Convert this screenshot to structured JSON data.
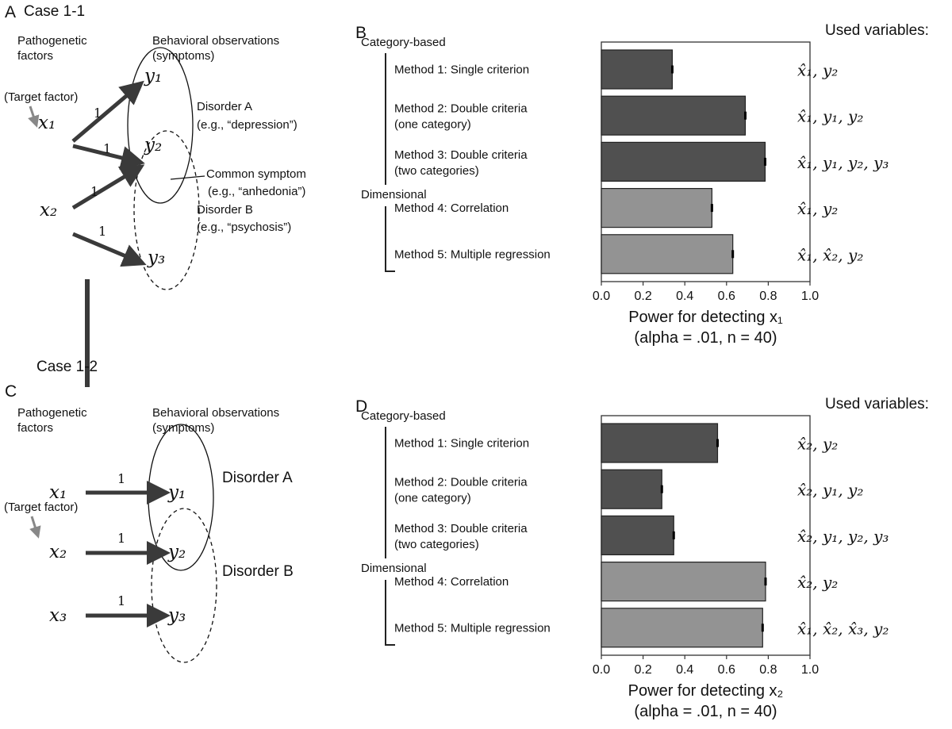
{
  "colors": {
    "category_bar": "#505050",
    "dimensional_bar": "#939393",
    "arrow": "#3a3a3a",
    "target_arrow": "#888888"
  },
  "panel_a": {
    "letter": "A",
    "case": "Case 1-1",
    "factors_label": [
      "Pathogenetic",
      "factors"
    ],
    "obs_label": [
      "Behavioral observations",
      "(symptoms)"
    ],
    "target": "(Target factor)",
    "nodes": {
      "x1": "x₁",
      "x2": "x₂",
      "y1": "y₁",
      "y2": "y₂",
      "y3": "y₃"
    },
    "weight": "1",
    "disorder_a": [
      "Disorder A",
      "(e.g., “depression”)"
    ],
    "common": [
      "Common symptom",
      "(e.g., “anhedonia”)"
    ],
    "disorder_b": [
      "Disorder B",
      "(e.g., “psychosis”)"
    ]
  },
  "panel_c": {
    "letter": "C",
    "case": "Case 1-2",
    "factors_label": [
      "Pathogenetic",
      "factors"
    ],
    "obs_label": [
      "Behavioral observations",
      "(symptoms)"
    ],
    "target": "(Target factor)",
    "nodes": {
      "x1": "x₁",
      "x2": "x₂",
      "x3": "x₃",
      "y1": "y₁",
      "y2": "y₂",
      "y3": "y₃"
    },
    "weight": "1",
    "disorder_a": "Disorder A",
    "disorder_b": "Disorder B"
  },
  "groups": {
    "category": "Category-based",
    "dimensional": "Dimensional"
  },
  "methods": [
    "Method 1: Single criterion",
    [
      "Method 2: Double criteria",
      "(one category)"
    ],
    [
      "Method 3: Double criteria",
      "(two categories)"
    ],
    "Method 4: Correlation",
    "Method 5: Multiple regression"
  ],
  "used_variables_label": "Used variables:",
  "chart_data": [
    {
      "panel": "B",
      "type": "bar",
      "orientation": "horizontal",
      "categories": [
        "Method 1: Single criterion",
        "Method 2: Double criteria (one category)",
        "Method 3: Double criteria (two categories)",
        "Method 4: Correlation",
        "Method 5: Multiple regression"
      ],
      "values": [
        0.34,
        0.69,
        0.785,
        0.53,
        0.63
      ],
      "groups": [
        "Category-based",
        "Category-based",
        "Category-based",
        "Dimensional",
        "Dimensional"
      ],
      "used_variables": [
        "x̂₁, y₂",
        "x̂₁, y₁, y₂",
        "x̂₁, y₁, y₂, y₃",
        "x̂₁, y₂",
        "x̂₁, x̂₂, y₂"
      ],
      "xlabel": "Power for detecting x₁",
      "xlabel2": "(alpha = .01, n = 40)",
      "xlim": [
        0,
        1
      ],
      "xticks": [
        "0.0",
        "0.2",
        "0.4",
        "0.6",
        "0.8",
        "1.0"
      ],
      "error_bars": true,
      "grid": false
    },
    {
      "panel": "D",
      "type": "bar",
      "orientation": "horizontal",
      "categories": [
        "Method 1: Single criterion",
        "Method 2: Double criteria (one category)",
        "Method 3: Double criteria (two categories)",
        "Method 4: Correlation",
        "Method 5: Multiple regression"
      ],
      "values": [
        0.557,
        0.29,
        0.347,
        0.787,
        0.773
      ],
      "groups": [
        "Category-based",
        "Category-based",
        "Category-based",
        "Dimensional",
        "Dimensional"
      ],
      "used_variables": [
        "x̂₂, y₂",
        "x̂₂, y₁, y₂",
        "x̂₂, y₁, y₂, y₃",
        "x̂₂, y₂",
        "x̂₁, x̂₂, x̂₃, y₂"
      ],
      "xlabel": "Power for detecting x₂",
      "xlabel2": "(alpha = .01, n = 40)",
      "xlim": [
        0,
        1
      ],
      "xticks": [
        "0.0",
        "0.2",
        "0.4",
        "0.6",
        "0.8",
        "1.0"
      ],
      "error_bars": true,
      "grid": false
    }
  ]
}
